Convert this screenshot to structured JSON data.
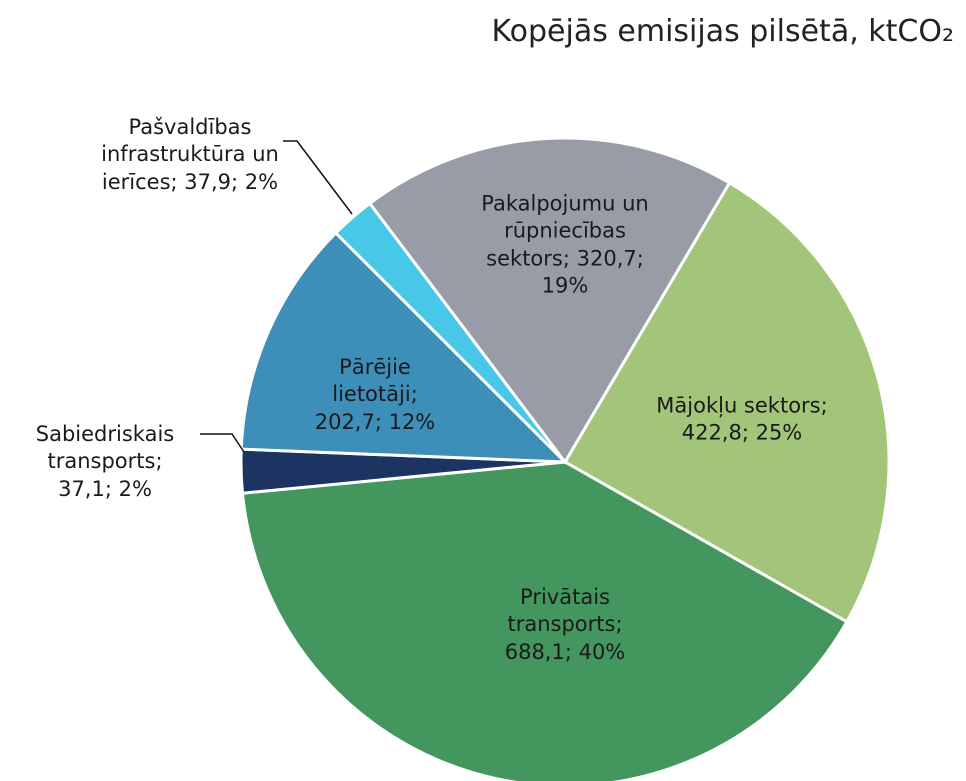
{
  "chart_data": {
    "type": "pie",
    "title": "Kopējās emisijas pilsētā, ktCO₂",
    "categories": [
      "Mājokļu sektors",
      "Privātais transports",
      "Sabiedriskais transports",
      "Pārējie lietotāji",
      "Pašvaldības infrastruktūra un ierīces",
      "Pakalpojumu un rūpniecības sektors"
    ],
    "values": [
      422.8,
      688.1,
      37.1,
      202.7,
      37.9,
      320.7
    ],
    "value_labels": [
      "422,8; 25%",
      "688,1; 40%",
      "37,1; 2%",
      "202,7; 12%",
      "37,9; 2%",
      "320,7; 19%"
    ],
    "label_separator": "; ",
    "colors": [
      "#a3c57a",
      "#43965e",
      "#1c3461",
      "#3d8fba",
      "#47c8e8",
      "#979ca6"
    ]
  }
}
